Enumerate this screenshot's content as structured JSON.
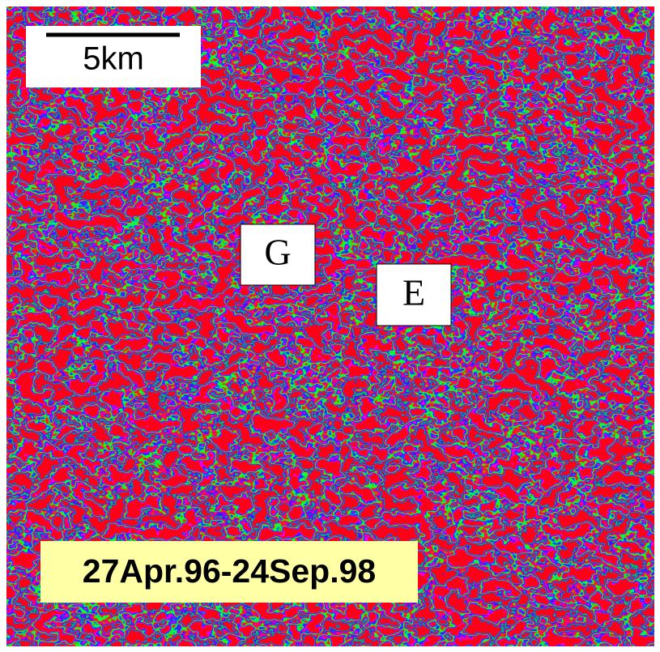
{
  "scale_bar": {
    "label": "5km"
  },
  "labels": [
    {
      "text": "G"
    },
    {
      "text": "E"
    }
  ],
  "date_range": "27Apr.96-24Sep.98"
}
